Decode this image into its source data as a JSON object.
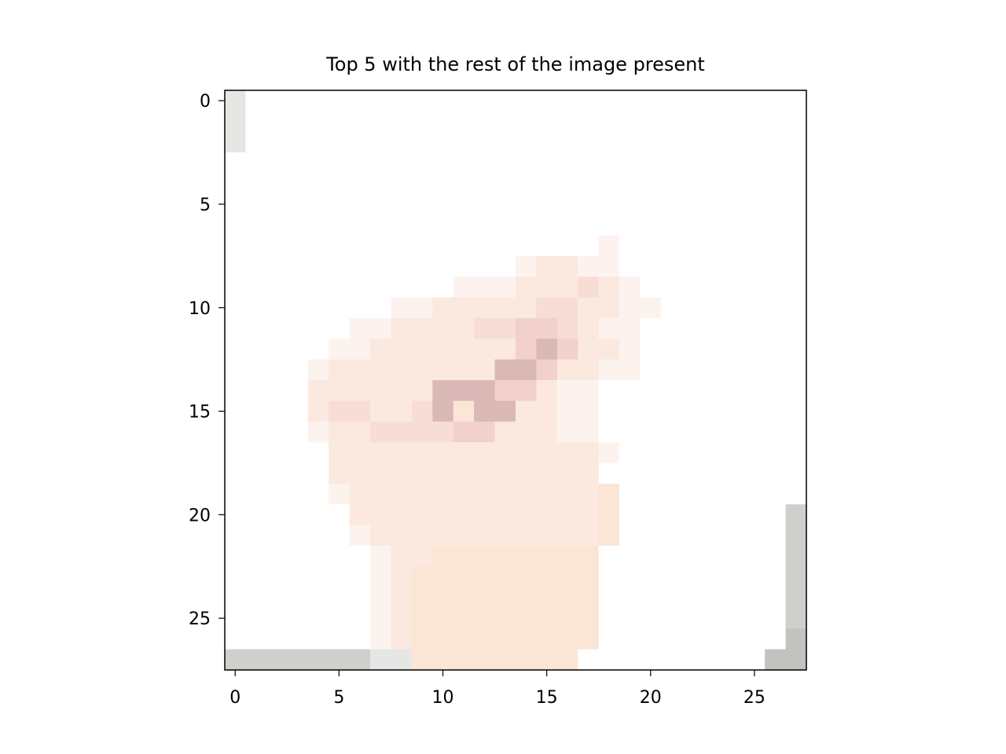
{
  "chart_data": {
    "type": "heatmap",
    "title": "Top 5 with the rest of the image present",
    "xlabel": "",
    "ylabel": "",
    "xlim": [
      -0.5,
      27.5
    ],
    "ylim": [
      27.5,
      -0.5
    ],
    "y_axis_inverted": true,
    "grid": false,
    "x_ticks": [
      0,
      5,
      10,
      15,
      20,
      25
    ],
    "y_ticks": [
      0,
      5,
      10,
      15,
      20,
      25
    ],
    "x_tick_labels": [
      "0",
      "5",
      "10",
      "15",
      "20",
      "25"
    ],
    "y_tick_labels": [
      "0",
      "5",
      "10",
      "15",
      "20",
      "25"
    ],
    "rows": 28,
    "cols": 28,
    "palette": {
      "white": "#ffffff",
      "near_white": "#fdfdfc",
      "faint_pink": "#fdf3ee",
      "light_peach": "#fbe9df",
      "pink": "#f7ddd6",
      "rose": "#f2d0cc",
      "dark_rose": "#d9b8b6",
      "peach": "#fbe6d6",
      "light_gray": "#e6e6e4",
      "gray": "#cfcfcb",
      "dark_gray": "#c2c2bf"
    },
    "image_rows": [
      "1...........................",
      "1...........................",
      "1...........................",
      "............................",
      "............................",
      "............................",
      "............................",
      "..................2.........",
      "..............23322.........",
      "...........222333432........",
      "........2233333443322.......",
      "......22333344554322........",
      ".....223333333565332........",
      "....2333333336653322........",
      "....33333366655322..........",
      "....34433467663322..........",
      "....23344445533322..........",
      ".....33333333333332.........",
      ".....3333333333333..........",
      ".....23333333333337.........",
      "......3333333333337........9",
      "......2333333333337........9",
      ".......23377777777.........a",
      ".......23777777777.........a",
      ".......23777777777.........a",
      ".......23777777777.........a",
      ".......23777777777.........b",
      "99999998877777777.........bb"
    ]
  }
}
